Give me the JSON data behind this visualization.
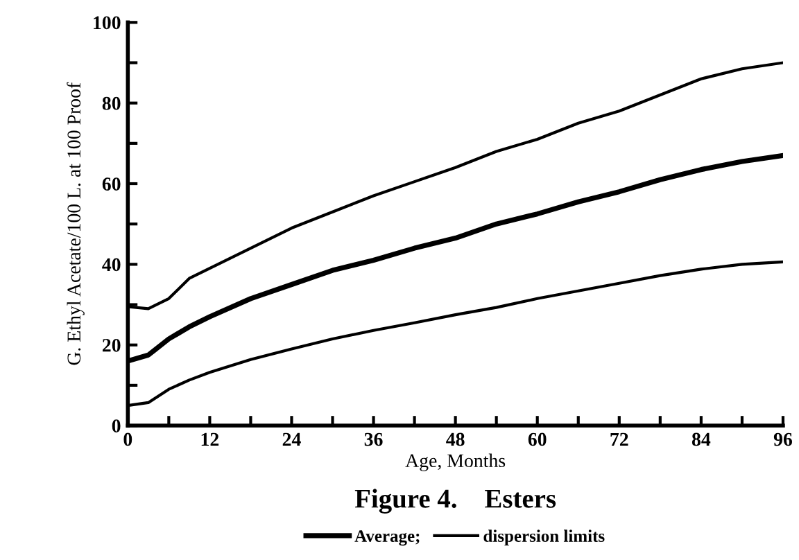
{
  "chart_data": {
    "type": "line",
    "title": "Figure 4.    Esters",
    "xlabel": "Age, Months",
    "ylabel": "G. Ethyl Acetate/100 L. at 100 Proof",
    "x": [
      0,
      3,
      6,
      9,
      12,
      18,
      24,
      30,
      36,
      42,
      48,
      54,
      60,
      66,
      72,
      78,
      84,
      90,
      96
    ],
    "series": [
      {
        "name": "Average;",
        "color": "#000000",
        "values": [
          16,
          17.5,
          21.5,
          24.5,
          27,
          31.5,
          35,
          38.5,
          41,
          44,
          46.5,
          50,
          52.5,
          55.5,
          58,
          61,
          63.5,
          65.5,
          67
        ]
      },
      {
        "name": "dispersion limits",
        "color": "#000000",
        "values": [
          29.5,
          29,
          31.5,
          36.5,
          39,
          44,
          49,
          53,
          57,
          60.5,
          64,
          68,
          71,
          75,
          78,
          82,
          86,
          88.5,
          90
        ]
      },
      {
        "color": "#000000",
        "values": [
          5,
          5.7,
          9,
          11.3,
          13.2,
          16.4,
          19,
          21.5,
          23.6,
          25.5,
          27.5,
          29.3,
          31.5,
          33.4,
          35.3,
          37.2,
          38.8,
          40,
          40.6
        ]
      }
    ],
    "xlim": [
      0,
      96
    ],
    "ylim": [
      0,
      100
    ],
    "xticks": [
      0,
      {
        "value": 6,
        "label": null
      },
      12,
      {
        "value": 18,
        "label": null
      },
      24,
      {
        "value": 30,
        "label": null
      },
      36,
      {
        "value": 42,
        "label": null
      },
      48,
      {
        "value": 54,
        "label": null
      },
      60,
      {
        "value": 66,
        "label": null
      },
      72,
      {
        "value": 78,
        "label": null
      },
      84,
      {
        "value": 90,
        "label": null
      },
      96
    ],
    "yticks": [
      0,
      {
        "value": 10,
        "label": null
      },
      20,
      {
        "value": 30,
        "label": null
      },
      40,
      {
        "value": 50,
        "label": null
      },
      60,
      {
        "value": 70,
        "label": null
      },
      80,
      {
        "value": 90,
        "label": null
      },
      100
    ],
    "grid": false,
    "legend": "bottom",
    "marker": "none",
    "line_style": "solid"
  }
}
